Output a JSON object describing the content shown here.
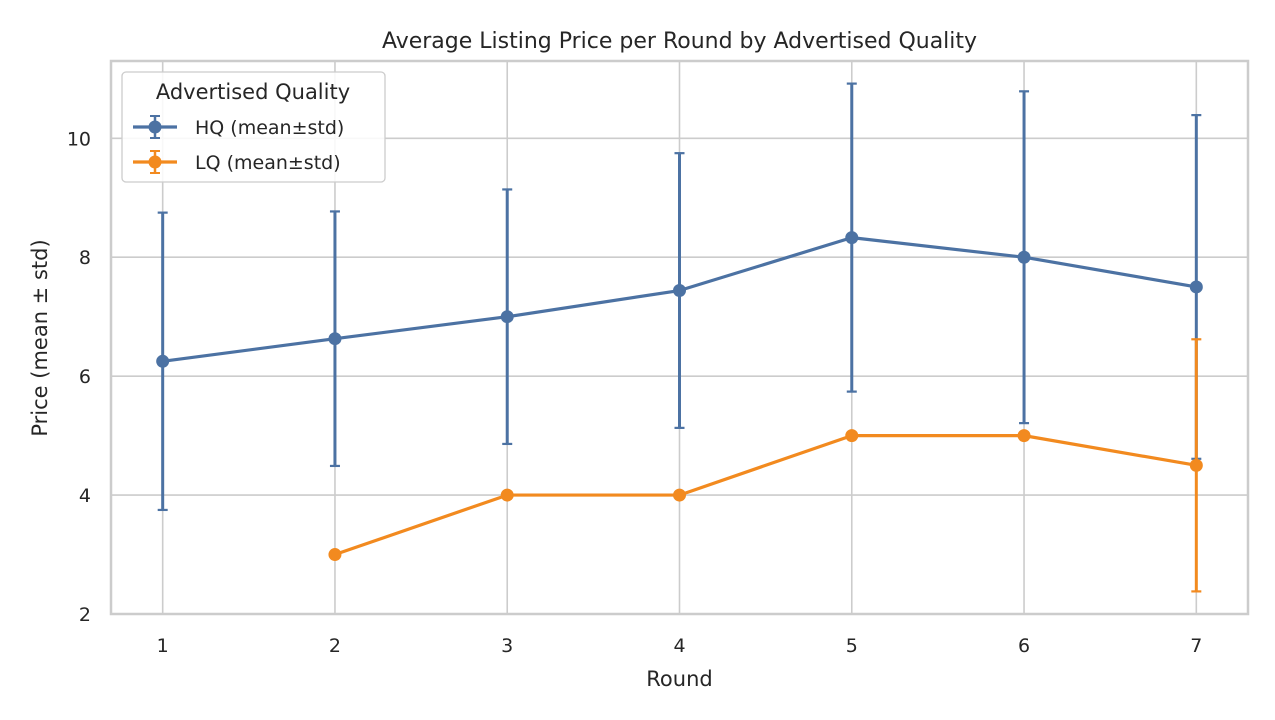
{
  "chart_data": {
    "type": "line",
    "title": "Average Listing Price per Round by Advertised Quality",
    "xlabel": "Round",
    "ylabel": "Price (mean ± std)",
    "x": [
      1,
      2,
      3,
      4,
      5,
      6,
      7
    ],
    "xlim": [
      0.7,
      7.3
    ],
    "ylim": [
      2,
      11.3
    ],
    "xticks": [
      1,
      2,
      3,
      4,
      5,
      6,
      7
    ],
    "yticks": [
      2,
      4,
      6,
      8,
      10
    ],
    "grid": true,
    "legend": {
      "title": "Advertised Quality",
      "placement": "top-left"
    },
    "series": [
      {
        "name": "HQ (mean±std)",
        "color": "#4c72a3",
        "x": [
          1,
          2,
          3,
          4,
          5,
          6,
          7
        ],
        "mean": [
          6.25,
          6.63,
          7.0,
          7.44,
          8.33,
          8.0,
          7.5
        ],
        "std": [
          2.5,
          2.14,
          2.14,
          2.31,
          2.59,
          2.79,
          2.89
        ]
      },
      {
        "name": "LQ (mean±std)",
        "color": "#f28a1f",
        "x": [
          2,
          3,
          4,
          5,
          6,
          7
        ],
        "mean": [
          3.0,
          4.0,
          4.0,
          5.0,
          5.0,
          4.5
        ],
        "std": [
          0,
          0,
          0,
          0,
          0,
          2.12
        ]
      }
    ]
  }
}
